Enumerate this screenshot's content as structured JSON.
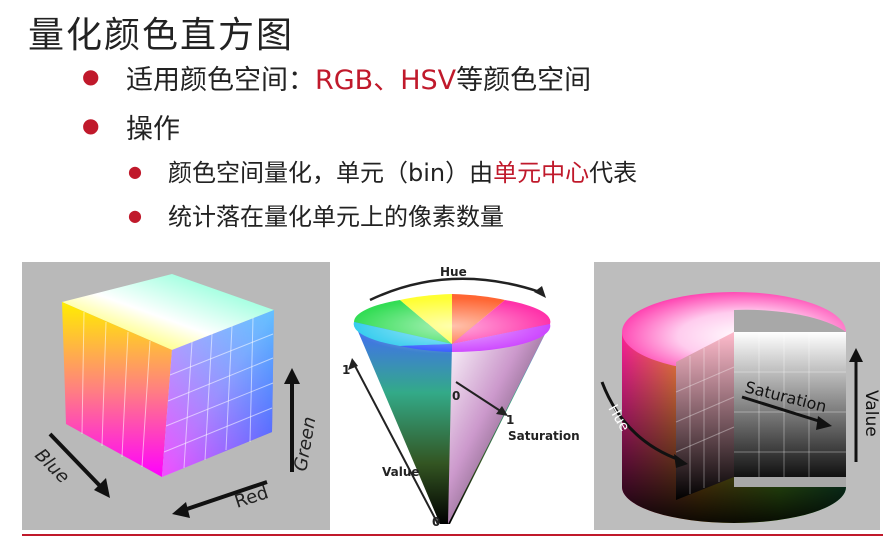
{
  "slide": {
    "title": "量化颜色直方图",
    "bullets": [
      {
        "prefix": "适用颜色空间：",
        "highlight": "RGB、HSV",
        "suffix": "等颜色空间"
      },
      {
        "text": "操作"
      }
    ],
    "sub_bullets": [
      {
        "prefix": "颜色空间量化，单元（bin）由",
        "highlight": "单元中心",
        "suffix": "代表"
      },
      {
        "text": "统计落在量化单元上的像素数量"
      }
    ]
  },
  "figures": {
    "rgb_cube": {
      "blue": "Blue",
      "red": "Red",
      "green": "Green"
    },
    "hsv_cone": {
      "hue": "Hue",
      "saturation": "Saturation",
      "value": "Value",
      "tick_top": "1",
      "tick_bottom": "0",
      "tick_center": "0",
      "tick_sat": "1"
    },
    "hsv_cylinder": {
      "hue": "Hue",
      "saturation": "Saturation",
      "value": "Value"
    }
  },
  "colors": {
    "accent": "#c0192b"
  }
}
